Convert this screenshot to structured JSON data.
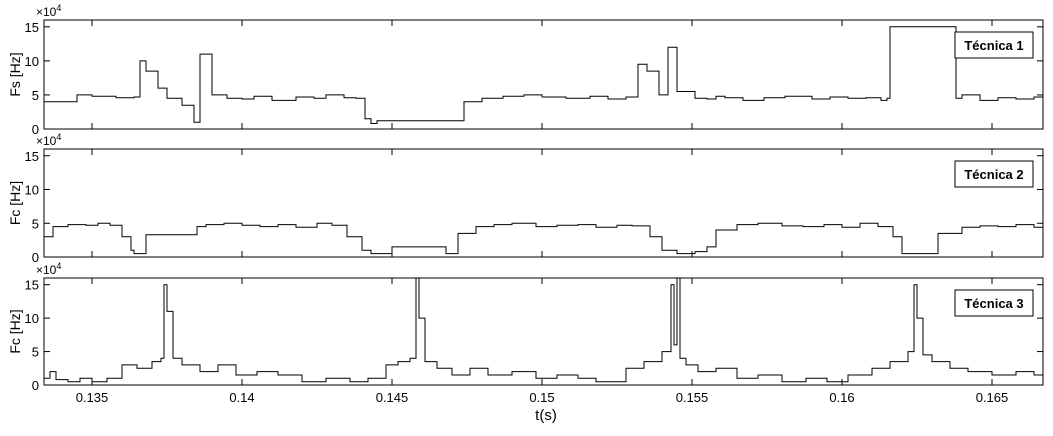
{
  "figure": {
    "xlabel": "t(s)",
    "x_ticks": [
      "0.135",
      "0.14",
      "0.145",
      "0.15",
      "0.155",
      "0.16",
      "0.165"
    ],
    "y_ticks": [
      "0",
      "5",
      "10",
      "15"
    ],
    "y_exponent_base": "×10",
    "y_exponent_power": "4"
  },
  "chart_data": [
    {
      "type": "line",
      "legend": "Técnica 1",
      "ylabel": "Fs [Hz]",
      "xlim": [
        0.1334,
        0.1667
      ],
      "ylim": [
        0,
        160000
      ],
      "x_ticks": [
        0.135,
        0.14,
        0.145,
        0.15,
        0.155,
        0.16,
        0.165
      ],
      "y_ticks": [
        0,
        50000,
        100000,
        150000
      ],
      "grid": false,
      "legend_position": "top-right",
      "x": [
        0.1334,
        0.1345,
        0.135,
        0.1358,
        0.1364,
        0.1366,
        0.1368,
        0.1372,
        0.1375,
        0.138,
        0.1384,
        0.1386,
        0.139,
        0.1395,
        0.14,
        0.1404,
        0.141,
        0.1418,
        0.1424,
        0.1428,
        0.1434,
        0.1438,
        0.1441,
        0.1443,
        0.1445,
        0.1452,
        0.146,
        0.1472,
        0.1474,
        0.148,
        0.1487,
        0.1494,
        0.15,
        0.1508,
        0.1516,
        0.1522,
        0.1528,
        0.1532,
        0.1535,
        0.1539,
        0.1542,
        0.1545,
        0.1551,
        0.1555,
        0.1558,
        0.1561,
        0.1567,
        0.1574,
        0.1581,
        0.159,
        0.1596,
        0.1602,
        0.1608,
        0.1613,
        0.1615,
        0.1616,
        0.1637,
        0.1638,
        0.164,
        0.1646,
        0.1652,
        0.1658,
        0.1664,
        0.1667
      ],
      "y": [
        40000,
        50000,
        48000,
        46000,
        47000,
        100000,
        85000,
        60000,
        45000,
        35000,
        10000,
        110000,
        50000,
        45000,
        44000,
        48000,
        42000,
        47000,
        45000,
        50000,
        46000,
        45000,
        15000,
        8000,
        12000,
        12000,
        12000,
        12000,
        40000,
        45000,
        48000,
        50000,
        47000,
        45000,
        48000,
        44000,
        47000,
        95000,
        85000,
        50000,
        120000,
        55000,
        45000,
        44000,
        48000,
        46000,
        42000,
        46000,
        48000,
        44000,
        47000,
        45000,
        46000,
        42000,
        45000,
        150000,
        150000,
        45000,
        50000,
        42000,
        46000,
        44000,
        47000,
        45000
      ]
    },
    {
      "type": "line",
      "legend": "Técnica 2",
      "ylabel": "Fc [Hz]",
      "xlim": [
        0.1334,
        0.1667
      ],
      "ylim": [
        0,
        160000
      ],
      "x_ticks": [
        0.135,
        0.14,
        0.145,
        0.15,
        0.155,
        0.16,
        0.165
      ],
      "y_ticks": [
        0,
        50000,
        100000,
        150000
      ],
      "grid": false,
      "legend_position": "top-right",
      "x": [
        0.1334,
        0.1337,
        0.1342,
        0.1348,
        0.1352,
        0.1356,
        0.136,
        0.1363,
        0.1364,
        0.1366,
        0.1368,
        0.1375,
        0.1382,
        0.1385,
        0.1388,
        0.1394,
        0.14,
        0.1406,
        0.1412,
        0.1418,
        0.1425,
        0.143,
        0.1435,
        0.144,
        0.1443,
        0.145,
        0.146,
        0.1468,
        0.1472,
        0.1478,
        0.1484,
        0.149,
        0.1498,
        0.1505,
        0.1512,
        0.1518,
        0.1525,
        0.153,
        0.1536,
        0.154,
        0.1545,
        0.1551,
        0.1555,
        0.1558,
        0.1565,
        0.1572,
        0.158,
        0.1587,
        0.1594,
        0.16,
        0.1606,
        0.1612,
        0.1617,
        0.162,
        0.1632,
        0.1636,
        0.164,
        0.1646,
        0.1652,
        0.1658,
        0.1664,
        0.1667
      ],
      "y": [
        30000,
        45000,
        48000,
        47000,
        50000,
        47000,
        30000,
        10000,
        5000,
        5000,
        33000,
        33000,
        33000,
        45000,
        48000,
        50000,
        47000,
        45000,
        48000,
        44000,
        50000,
        47000,
        30000,
        10000,
        5000,
        15000,
        15000,
        5000,
        35000,
        45000,
        48000,
        50000,
        45000,
        47000,
        48000,
        44000,
        47000,
        46000,
        30000,
        10000,
        5000,
        8000,
        15000,
        40000,
        48000,
        50000,
        46000,
        45000,
        48000,
        44000,
        50000,
        45000,
        30000,
        5000,
        35000,
        35000,
        44000,
        46000,
        45000,
        48000,
        44000,
        45000
      ]
    },
    {
      "type": "line",
      "legend": "Técnica 3",
      "ylabel": "Fc [Hz]",
      "xlim": [
        0.1334,
        0.1667
      ],
      "ylim": [
        0,
        160000
      ],
      "x_ticks": [
        0.135,
        0.14,
        0.145,
        0.15,
        0.155,
        0.16,
        0.165
      ],
      "y_ticks": [
        0,
        50000,
        100000,
        150000
      ],
      "grid": false,
      "legend_position": "top-right",
      "x": [
        0.1334,
        0.1336,
        0.1338,
        0.1342,
        0.1346,
        0.135,
        0.1355,
        0.136,
        0.1365,
        0.137,
        0.1373,
        0.1374,
        0.1375,
        0.1377,
        0.138,
        0.1386,
        0.1392,
        0.1398,
        0.1405,
        0.1412,
        0.142,
        0.1428,
        0.1436,
        0.1442,
        0.1448,
        0.1452,
        0.1456,
        0.1458,
        0.1459,
        0.1461,
        0.1465,
        0.147,
        0.1476,
        0.1482,
        0.149,
        0.1498,
        0.1505,
        0.1512,
        0.1518,
        0.1522,
        0.1528,
        0.1534,
        0.154,
        0.1543,
        0.1544,
        0.1545,
        0.1546,
        0.1548,
        0.1552,
        0.1558,
        0.1565,
        0.1572,
        0.158,
        0.1588,
        0.1595,
        0.1602,
        0.161,
        0.1616,
        0.1622,
        0.1624,
        0.1625,
        0.1627,
        0.163,
        0.1636,
        0.1642,
        0.165,
        0.1658,
        0.1664,
        0.1667
      ],
      "y": [
        10000,
        20000,
        8000,
        5000,
        10000,
        5000,
        10000,
        30000,
        25000,
        35000,
        40000,
        150000,
        110000,
        40000,
        30000,
        20000,
        30000,
        15000,
        20000,
        15000,
        5000,
        10000,
        5000,
        10000,
        30000,
        35000,
        40000,
        160000,
        100000,
        35000,
        25000,
        15000,
        25000,
        15000,
        20000,
        10000,
        15000,
        10000,
        5000,
        5000,
        25000,
        35000,
        50000,
        150000,
        60000,
        160000,
        40000,
        30000,
        20000,
        25000,
        10000,
        15000,
        5000,
        10000,
        5000,
        15000,
        25000,
        35000,
        50000,
        150000,
        100000,
        45000,
        35000,
        25000,
        20000,
        15000,
        20000,
        15000,
        20000
      ]
    }
  ]
}
